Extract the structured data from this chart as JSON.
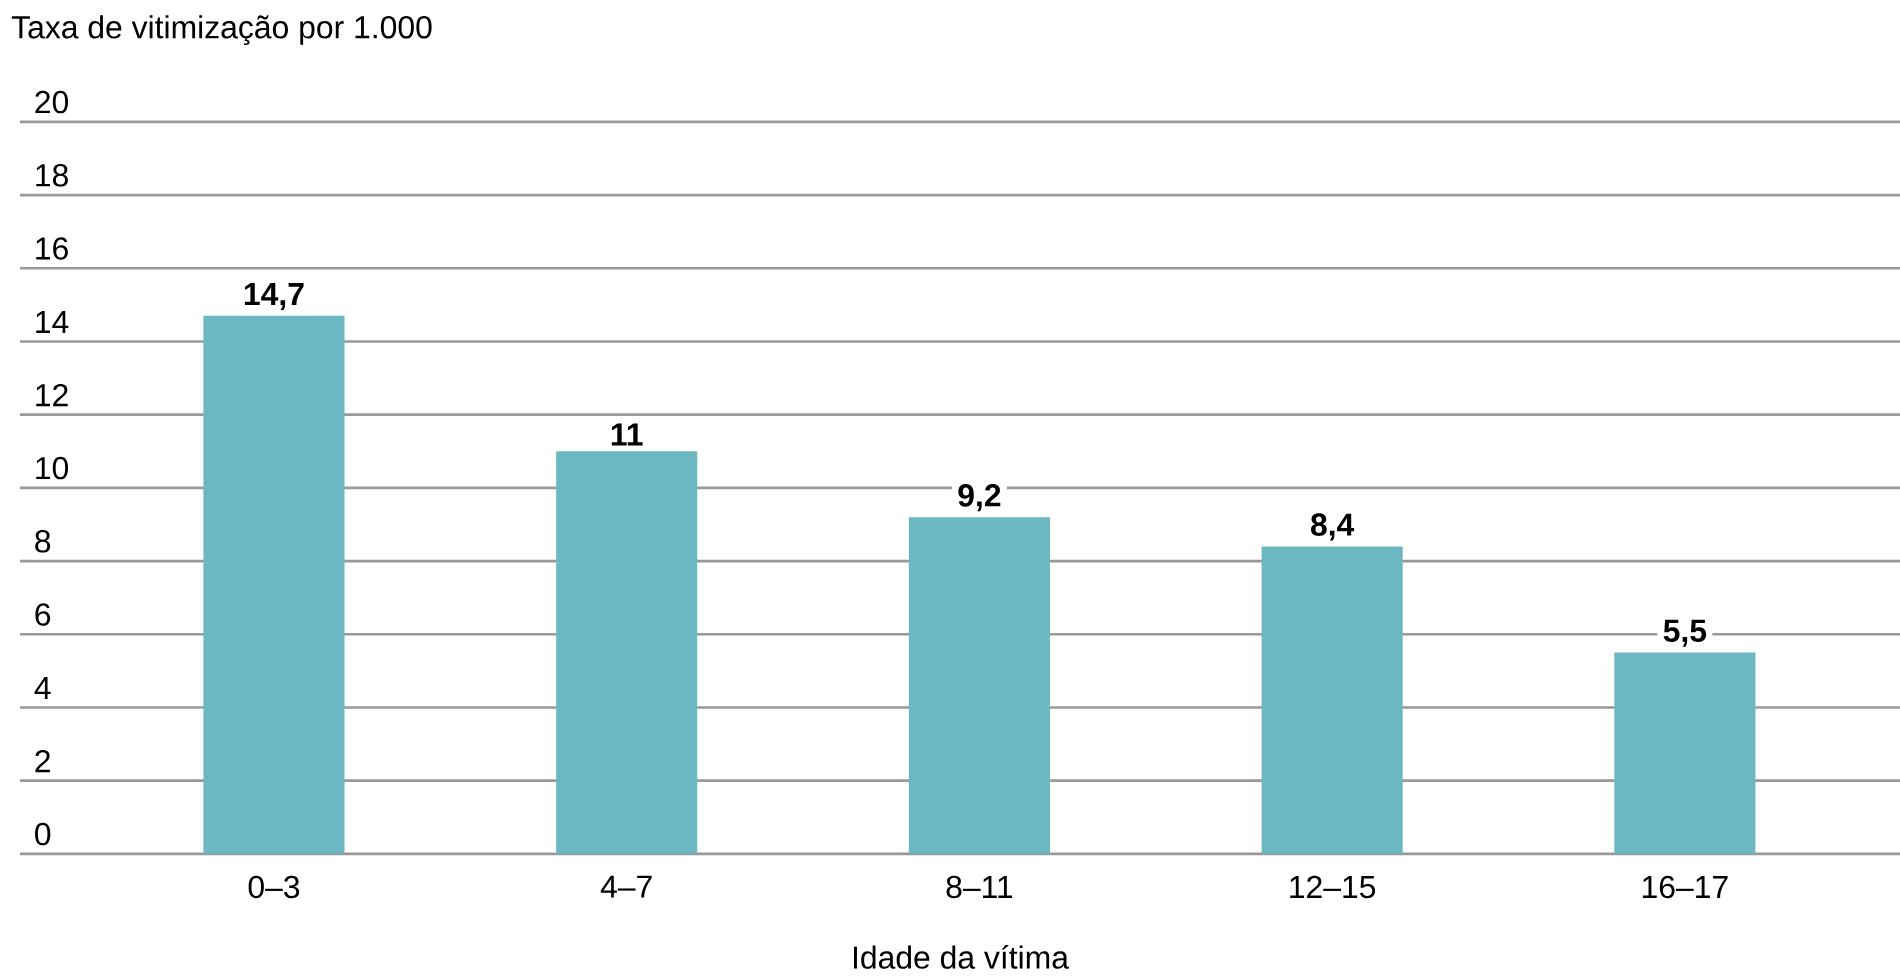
{
  "chart_data": {
    "type": "bar",
    "ylabel": "Taxa de vitimização por 1.000",
    "xlabel": "Idade da vítima",
    "categories": [
      "0–3",
      "4–7",
      "8–11",
      "12–15",
      "16–17"
    ],
    "values": [
      14.7,
      11,
      9.2,
      8.4,
      5.5
    ],
    "value_labels": [
      "14,7",
      "11",
      "9,2",
      "8,4",
      "5,5"
    ],
    "color": "#6bb8c2",
    "ylim": [
      0,
      20
    ],
    "yticks": [
      0,
      2,
      4,
      6,
      8,
      10,
      12,
      14,
      16,
      18,
      20
    ],
    "grid": "y"
  }
}
